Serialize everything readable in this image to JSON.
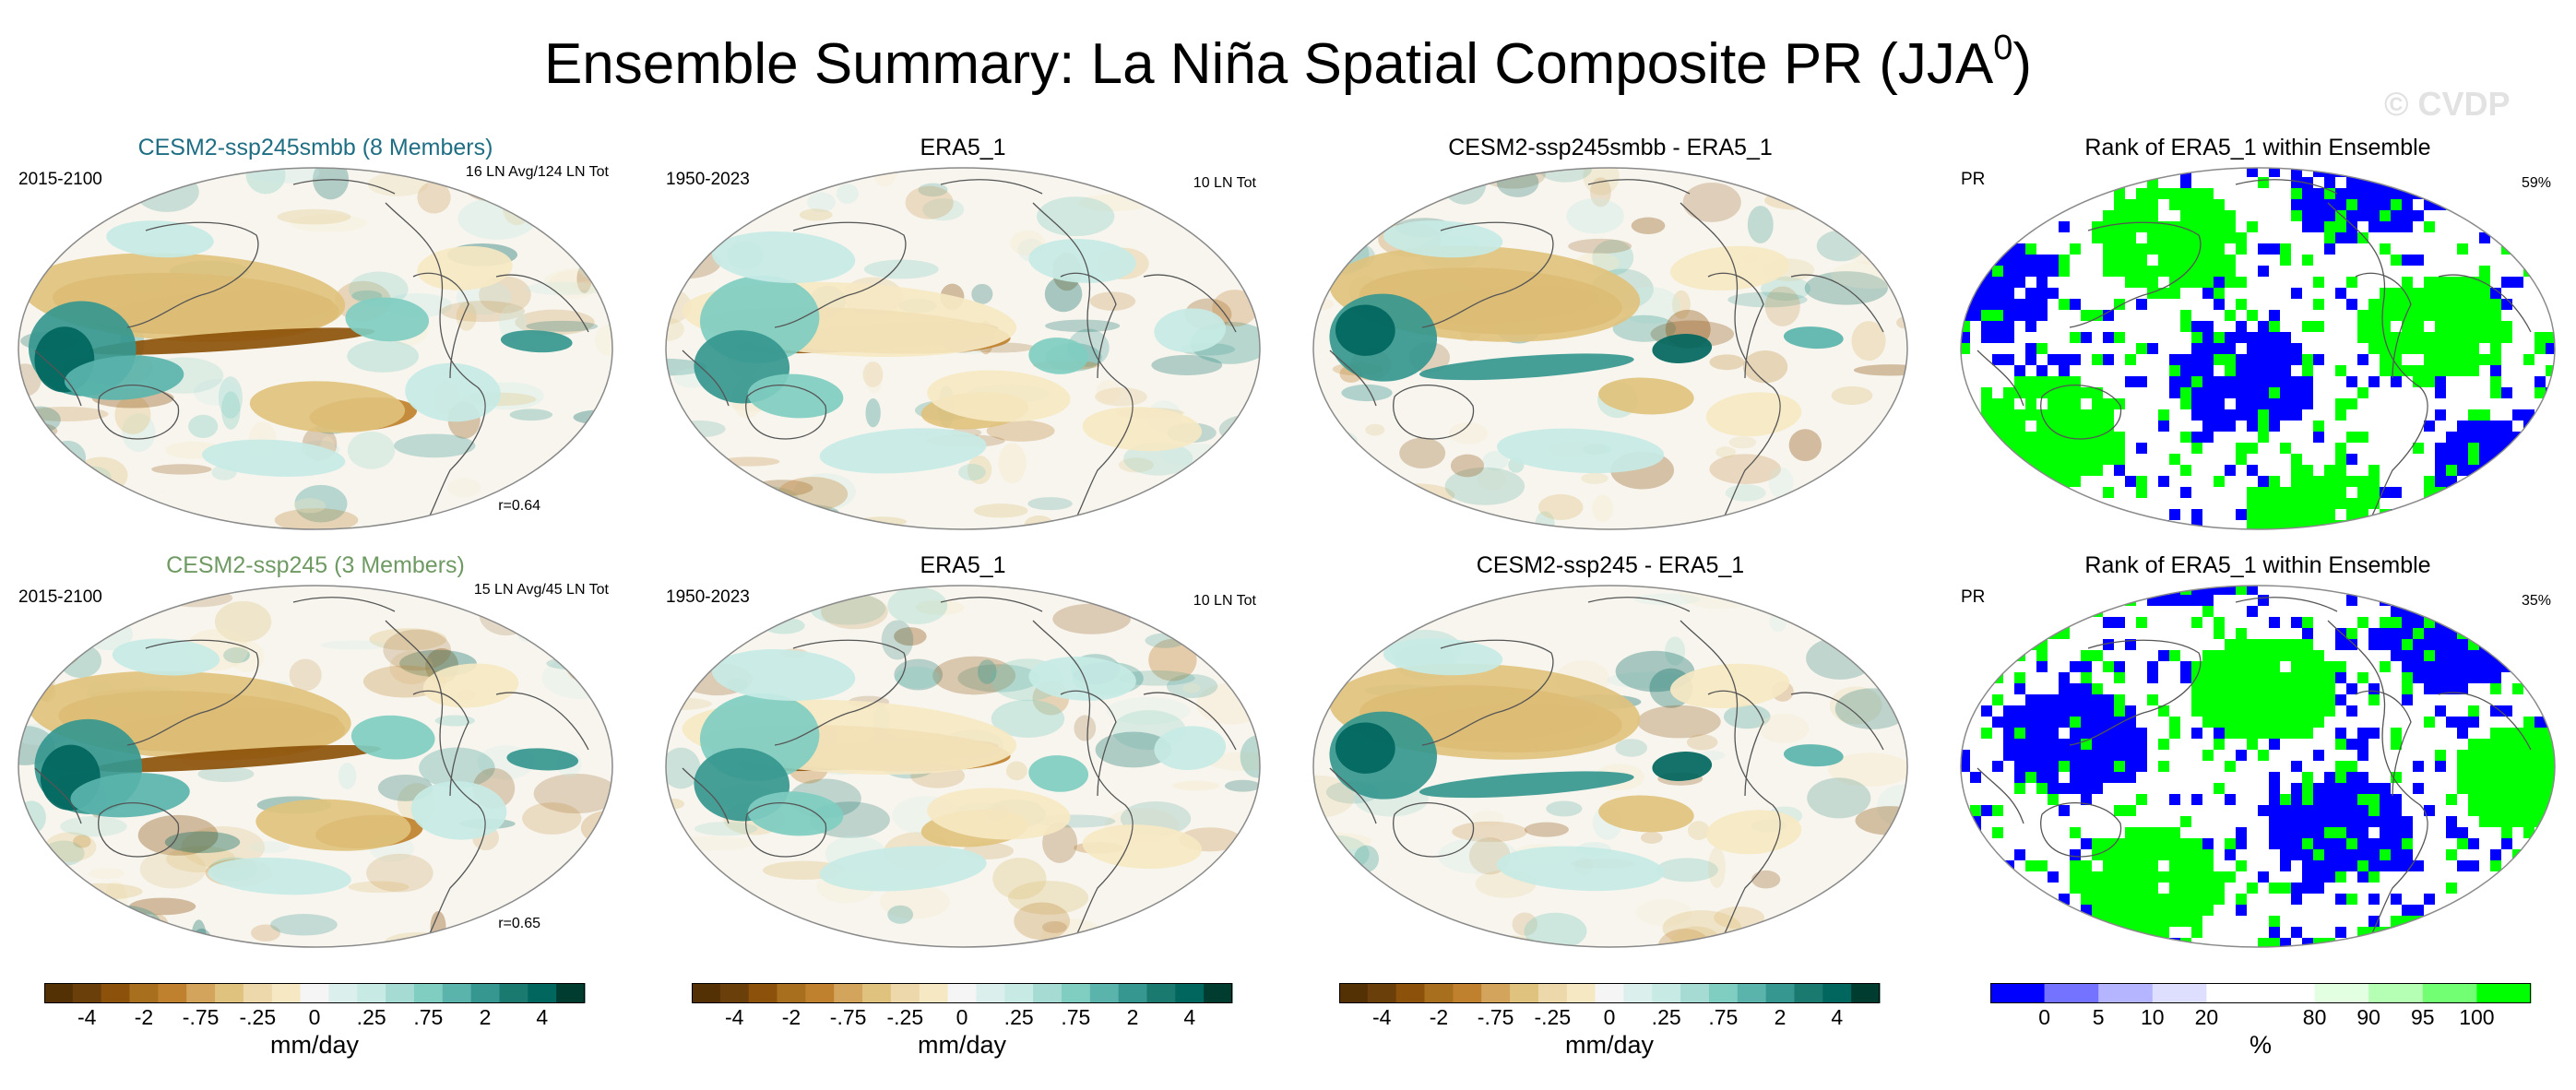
{
  "title": {
    "main": "Ensemble Summary: La Niña Spatial Composite PR (JJA",
    "sup": "0",
    "close": ")"
  },
  "watermark": "© CVDP",
  "panels": [
    {
      "title": "CESM2-ssp245smbb (8 Members)",
      "title_color": "#1f6e83",
      "left": "2015-2100",
      "right": "16 LN Avg/124 LN Tot",
      "corr": "r=0.64",
      "kind": "ens",
      "variant": 0
    },
    {
      "title": "ERA5_1",
      "title_color": "#000000",
      "left": "1950-2023",
      "right": "10 LN Tot",
      "corr": "",
      "kind": "obs",
      "variant": 1
    },
    {
      "title": "CESM2-ssp245smbb - ERA5_1",
      "title_color": "#000000",
      "left": "",
      "right": "",
      "corr": "",
      "kind": "diff",
      "variant": 2
    },
    {
      "title": "Rank of ERA5_1 within Ensemble",
      "title_color": "#000000",
      "left": "PR",
      "right": "59%",
      "corr": "",
      "kind": "rank",
      "variant": 3
    },
    {
      "title": "CESM2-ssp245 (3 Members)",
      "title_color": "#6f9a63",
      "left": "2015-2100",
      "right": "15 LN Avg/45 LN Tot",
      "corr": "r=0.65",
      "kind": "ens",
      "variant": 4
    },
    {
      "title": "ERA5_1",
      "title_color": "#000000",
      "left": "1950-2023",
      "right": "10 LN Tot",
      "corr": "",
      "kind": "obs",
      "variant": 5
    },
    {
      "title": "CESM2-ssp245 - ERA5_1",
      "title_color": "#000000",
      "left": "",
      "right": "",
      "corr": "",
      "kind": "diff",
      "variant": 6
    },
    {
      "title": "Rank of ERA5_1 within Ensemble",
      "title_color": "#000000",
      "left": "PR",
      "right": "35%",
      "corr": "",
      "kind": "rank",
      "variant": 7
    }
  ],
  "colorbars": [
    {
      "colors": [
        "#543005",
        "#6b3f0a",
        "#8c510a",
        "#a8701e",
        "#bf812d",
        "#d2a45c",
        "#dfc27d",
        "#ecd8aa",
        "#f6e8c3",
        "#f5f5f5",
        "#dbf0ec",
        "#c7eae5",
        "#a6dbd3",
        "#80cdc1",
        "#5ab4ac",
        "#35978f",
        "#1a7a70",
        "#01665e",
        "#003c30"
      ],
      "labels": [
        "-4",
        "-2",
        "-.75",
        "-.25",
        "0",
        ".25",
        ".75",
        "2",
        "4"
      ],
      "units": "mm/day"
    },
    {
      "colors": [
        "#543005",
        "#6b3f0a",
        "#8c510a",
        "#a8701e",
        "#bf812d",
        "#d2a45c",
        "#dfc27d",
        "#ecd8aa",
        "#f6e8c3",
        "#f5f5f5",
        "#dbf0ec",
        "#c7eae5",
        "#a6dbd3",
        "#80cdc1",
        "#5ab4ac",
        "#35978f",
        "#1a7a70",
        "#01665e",
        "#003c30"
      ],
      "labels": [
        "-4",
        "-2",
        "-.75",
        "-.25",
        "0",
        ".25",
        ".75",
        "2",
        "4"
      ],
      "units": "mm/day"
    },
    {
      "colors": [
        "#543005",
        "#6b3f0a",
        "#8c510a",
        "#a8701e",
        "#bf812d",
        "#d2a45c",
        "#dfc27d",
        "#ecd8aa",
        "#f6e8c3",
        "#f5f5f5",
        "#dbf0ec",
        "#c7eae5",
        "#a6dbd3",
        "#80cdc1",
        "#5ab4ac",
        "#35978f",
        "#1a7a70",
        "#01665e",
        "#003c30"
      ],
      "labels": [
        "-4",
        "-2",
        "-.75",
        "-.25",
        "0",
        ".25",
        ".75",
        "2",
        "4"
      ],
      "units": "mm/day"
    },
    {
      "colors": [
        "#0000ff",
        "#7373ff",
        "#b4b4ff",
        "#dedeff",
        "#ffffff",
        "#ffffff",
        "#e2ffe2",
        "#b4ffb4",
        "#73ff73",
        "#00ff00"
      ],
      "labels": [
        "0",
        "5",
        "10",
        "20",
        "80",
        "90",
        "95",
        "100"
      ],
      "units": "%"
    }
  ]
}
